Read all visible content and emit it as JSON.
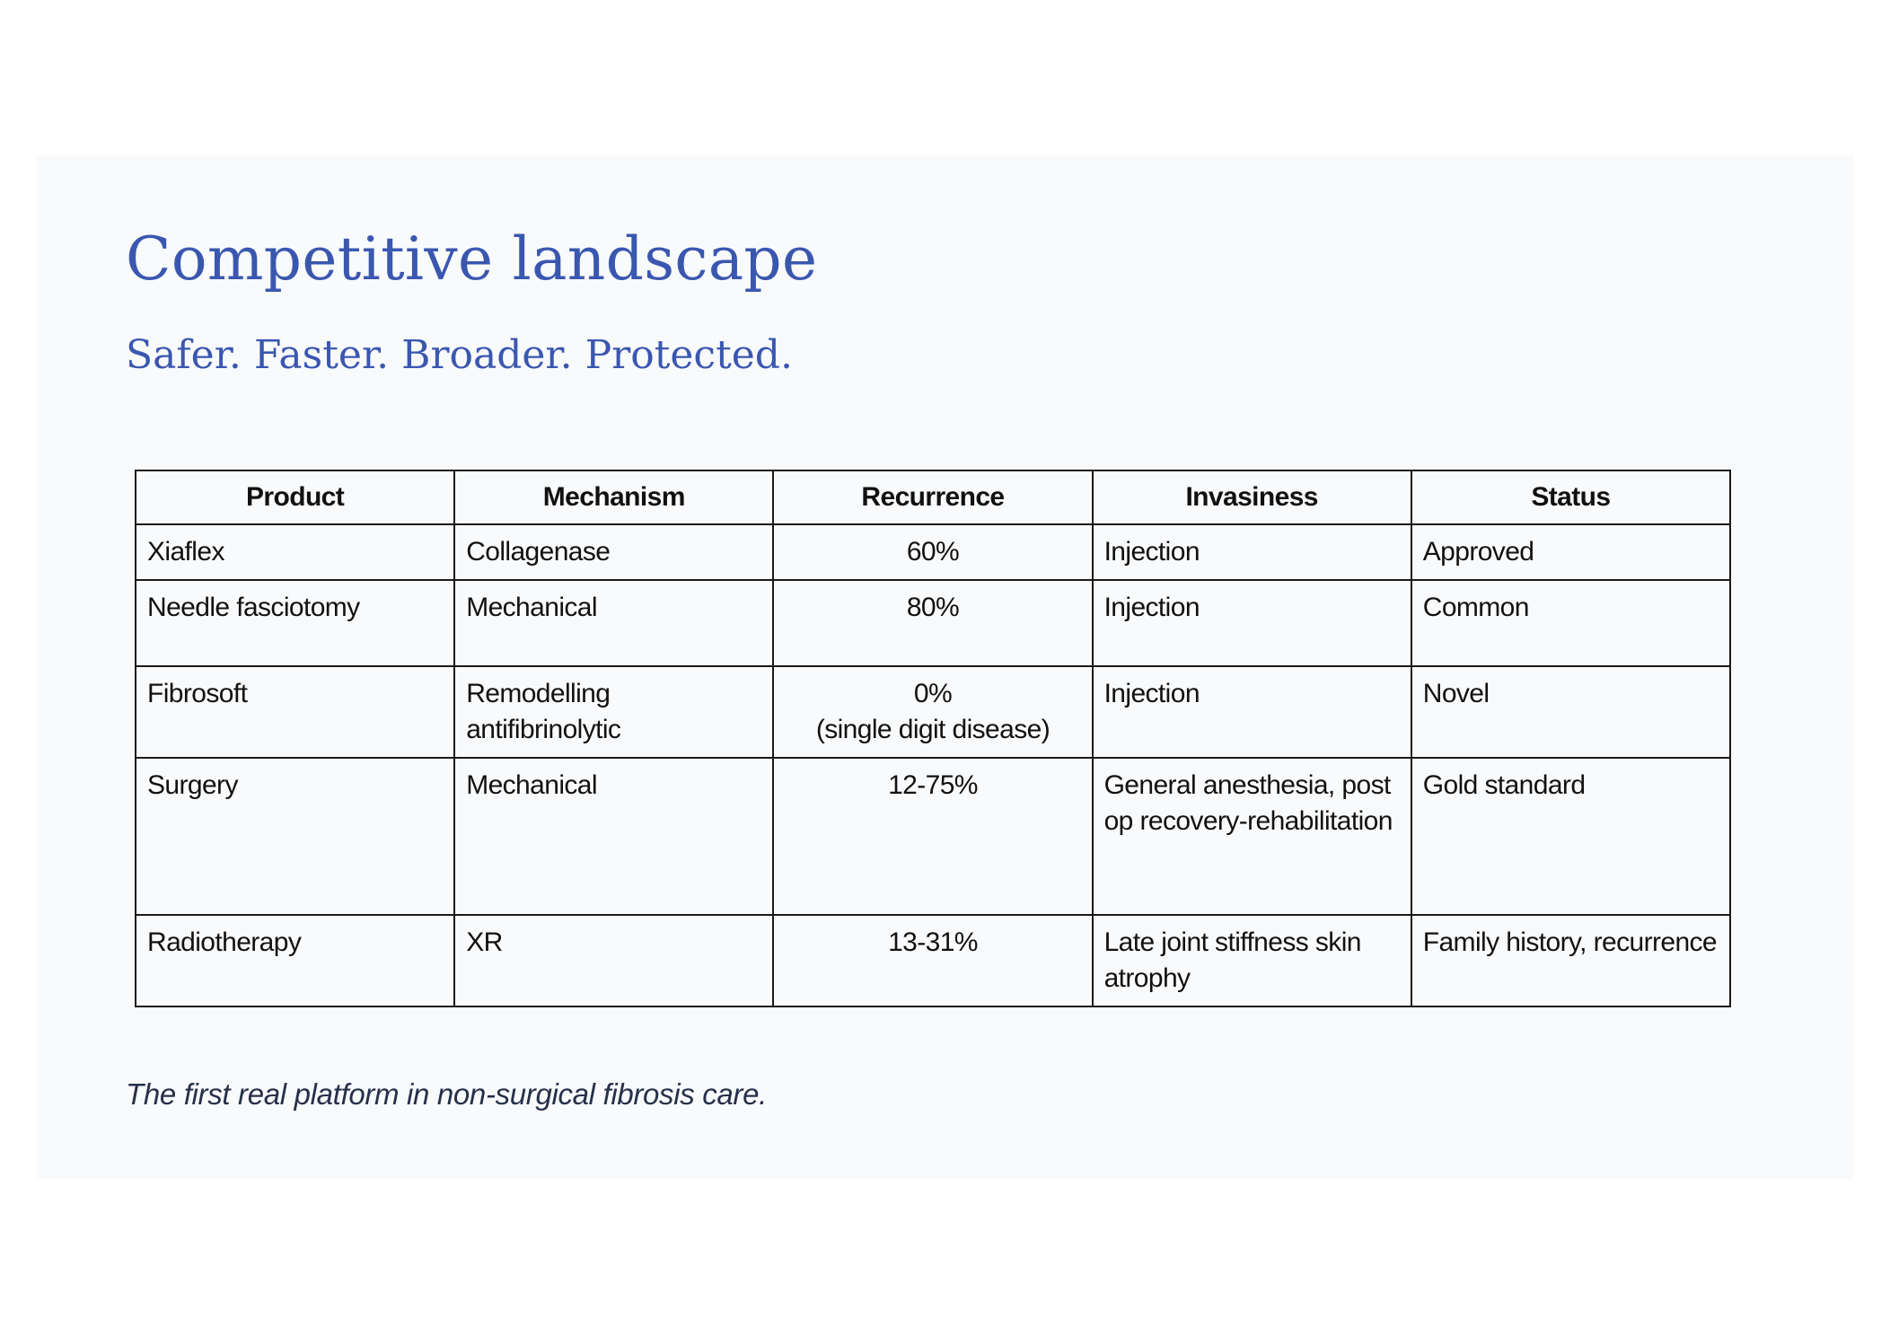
{
  "page": {
    "title": "Competitive landscape",
    "subtitle": "Safer. Faster. Broader. Protected.",
    "footer": "The first real platform in non-surgical fibrosis care."
  },
  "colors": {
    "accent_blue": "#3a57b0",
    "footer_navy": "#26304a",
    "panel_background": "#f9fafc",
    "table_border": "#1a1a1a",
    "table_text": "#111111"
  },
  "table": {
    "columns": [
      "Product",
      "Mechanism",
      "Recurrence",
      "Invasiness",
      "Status"
    ],
    "rows": [
      [
        "Xiaflex",
        "Collagenase",
        "60%",
        "Injection",
        "Approved"
      ],
      [
        "Needle fasciotomy",
        "Mechanical",
        "80%",
        "Injection",
        "Common"
      ],
      [
        "Fibrosoft",
        "Remodelling antifibrinolytic",
        "0%\n(single digit disease)",
        "Injection",
        "Novel"
      ],
      [
        "Surgery",
        "Mechanical",
        "12-75%",
        "General anesthesia, post op recovery-rehabilitation",
        "Gold standard"
      ],
      [
        "Radiotherapy",
        "XR",
        "13-31%",
        "Late joint stiffness skin atrophy",
        "Family history, recurrence"
      ]
    ]
  }
}
